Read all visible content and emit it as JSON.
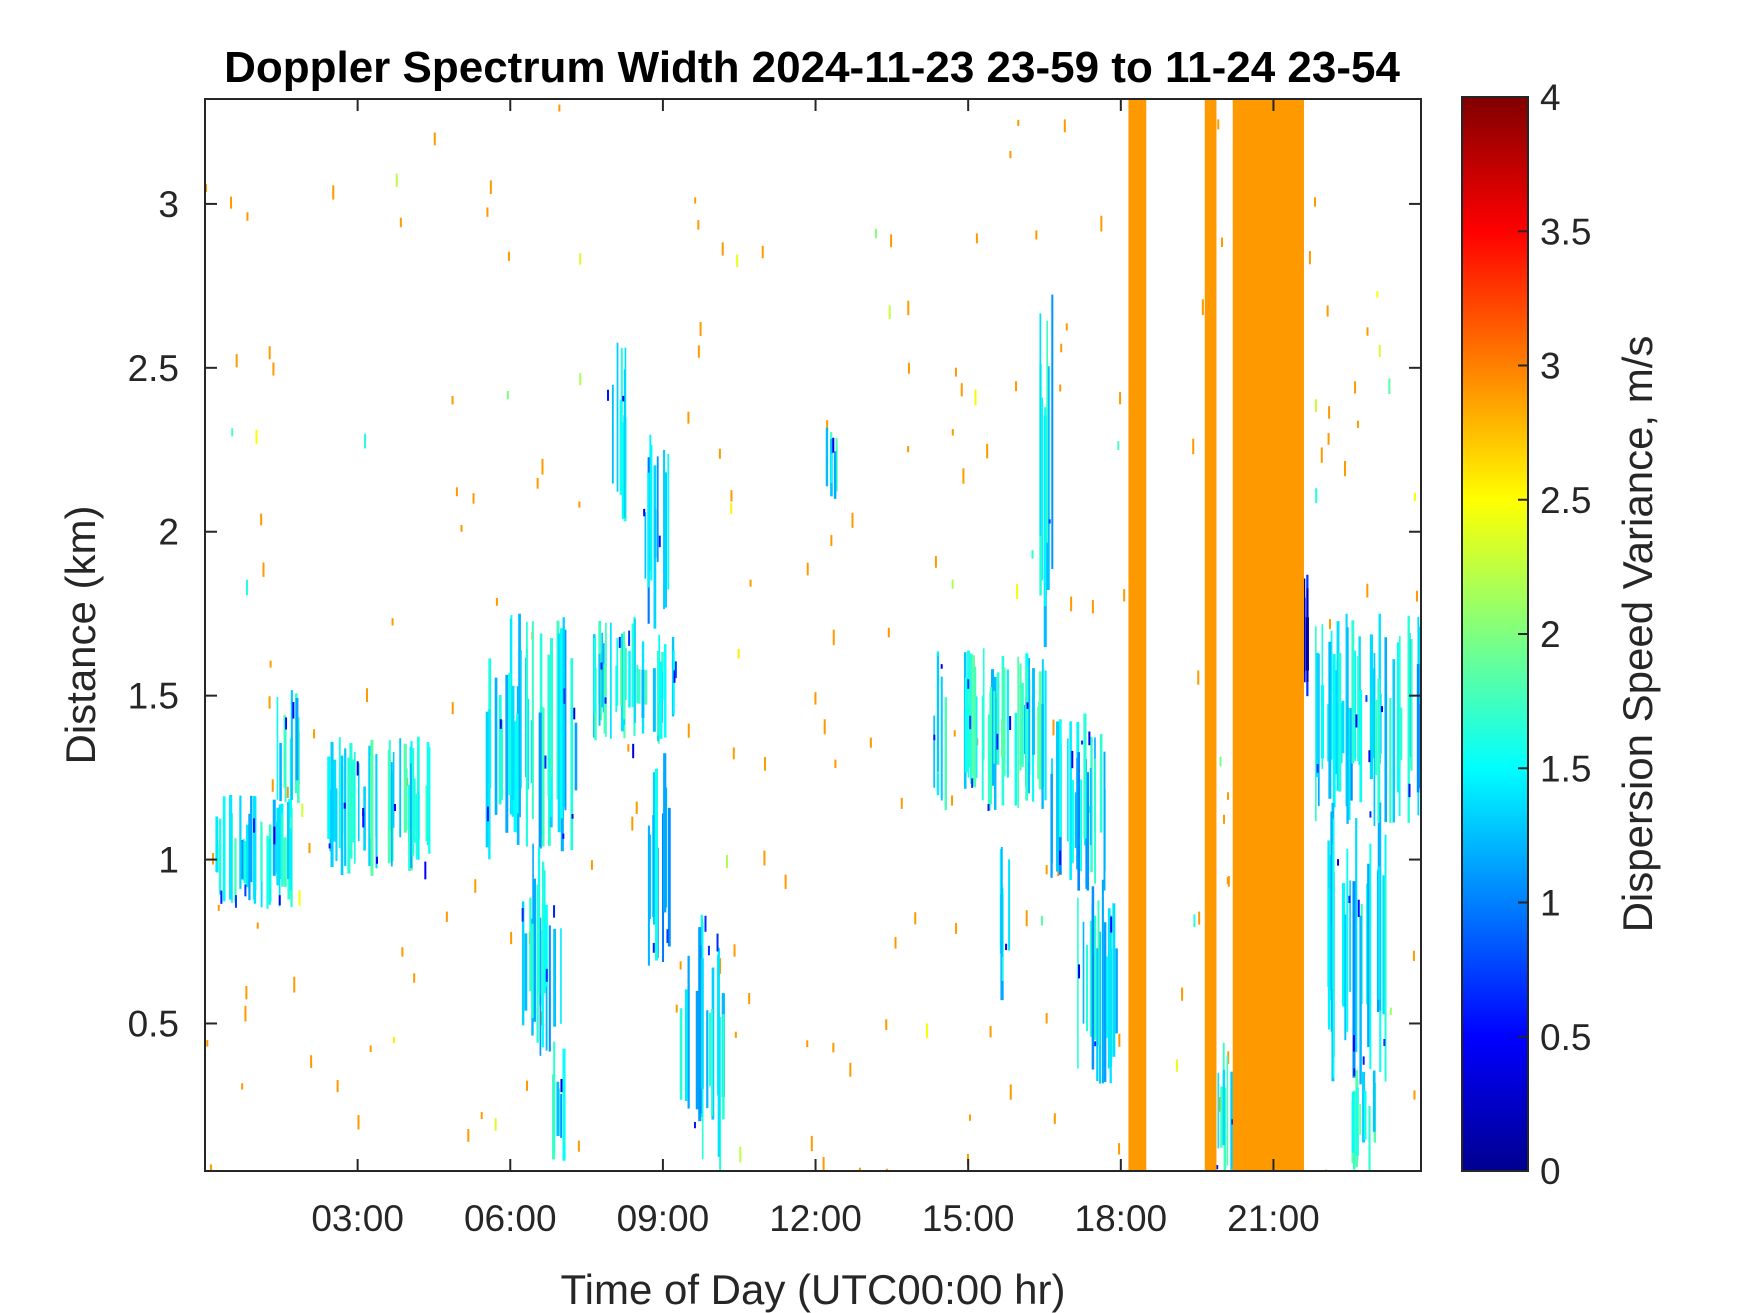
{
  "chart_data": {
    "type": "heatmap",
    "title": "Doppler Spectrum Width 2024-11-23 23-59 to 11-24 23-54",
    "xlabel": "Time of Day (UTC00:00 hr)",
    "ylabel": "Distance (km)",
    "colorbar_label": "Dispersion Speed Variance, m/s",
    "x_unit": "hours",
    "xlim": [
      0,
      23.9
    ],
    "ylim": [
      0.05,
      3.32
    ],
    "clim": [
      0,
      4
    ],
    "colormap": "jet",
    "x_ticks": [
      {
        "value": 3,
        "label": "03:00"
      },
      {
        "value": 6,
        "label": "06:00"
      },
      {
        "value": 9,
        "label": "09:00"
      },
      {
        "value": 12,
        "label": "12:00"
      },
      {
        "value": 15,
        "label": "15:00"
      },
      {
        "value": 18,
        "label": "18:00"
      },
      {
        "value": 21,
        "label": "21:00"
      }
    ],
    "y_ticks": [
      {
        "value": 0.5,
        "label": "0.5"
      },
      {
        "value": 1,
        "label": "1"
      },
      {
        "value": 1.5,
        "label": "1.5"
      },
      {
        "value": 2,
        "label": "2"
      },
      {
        "value": 2.5,
        "label": "2.5"
      },
      {
        "value": 3,
        "label": "3"
      }
    ],
    "colorbar_ticks": [
      {
        "value": 0,
        "label": "0"
      },
      {
        "value": 0.5,
        "label": "0.5"
      },
      {
        "value": 1,
        "label": "1"
      },
      {
        "value": 1.5,
        "label": "1.5"
      },
      {
        "value": 2,
        "label": "2"
      },
      {
        "value": 2.5,
        "label": "2.5"
      },
      {
        "value": 3,
        "label": "3"
      },
      {
        "value": 3.5,
        "label": "3.5"
      },
      {
        "value": 4,
        "label": "4"
      }
    ],
    "saturated_columns": [
      {
        "x0": 18.15,
        "x1": 18.5,
        "value": 2.9
      },
      {
        "x0": 19.65,
        "x1": 19.88,
        "value": 2.9
      },
      {
        "x0": 20.2,
        "x1": 21.6,
        "value": 2.9
      }
    ],
    "echo_regions": [
      {
        "x0": 0.2,
        "x1": 1.7,
        "y0": 0.85,
        "y1": 1.2,
        "value": 1.45
      },
      {
        "x0": 1.4,
        "x1": 1.85,
        "y0": 1.1,
        "y1": 1.52,
        "value": 1.45
      },
      {
        "x0": 2.4,
        "x1": 4.4,
        "y0": 0.95,
        "y1": 1.38,
        "value": 1.5
      },
      {
        "x0": 5.5,
        "x1": 7.3,
        "y0": 1.0,
        "y1": 1.75,
        "value": 1.4
      },
      {
        "x0": 6.2,
        "x1": 7.0,
        "y0": 0.4,
        "y1": 1.05,
        "value": 1.35
      },
      {
        "x0": 6.8,
        "x1": 7.05,
        "y0": 0.05,
        "y1": 0.45,
        "value": 1.4
      },
      {
        "x0": 7.6,
        "x1": 9.3,
        "y0": 1.35,
        "y1": 1.75,
        "value": 1.55
      },
      {
        "x0": 7.9,
        "x1": 8.3,
        "y0": 2.0,
        "y1": 2.6,
        "value": 1.5
      },
      {
        "x0": 8.6,
        "x1": 9.1,
        "y0": 1.7,
        "y1": 2.35,
        "value": 1.3
      },
      {
        "x0": 8.7,
        "x1": 9.2,
        "y0": 0.65,
        "y1": 1.35,
        "value": 1.3
      },
      {
        "x0": 9.3,
        "x1": 10.2,
        "y0": 0.05,
        "y1": 0.85,
        "value": 1.35
      },
      {
        "x0": 12.2,
        "x1": 12.45,
        "y0": 2.1,
        "y1": 2.35,
        "value": 1.5
      },
      {
        "x0": 14.3,
        "x1": 16.5,
        "y0": 1.15,
        "y1": 1.65,
        "value": 1.55
      },
      {
        "x0": 16.3,
        "x1": 16.65,
        "y0": 1.6,
        "y1": 2.75,
        "value": 1.4
      },
      {
        "x0": 15.6,
        "x1": 15.8,
        "y0": 0.55,
        "y1": 1.1,
        "value": 1.4
      },
      {
        "x0": 16.6,
        "x1": 17.7,
        "y0": 0.9,
        "y1": 1.45,
        "value": 1.35
      },
      {
        "x0": 17.1,
        "x1": 17.9,
        "y0": 0.3,
        "y1": 0.95,
        "value": 1.4
      },
      {
        "x0": 19.7,
        "x1": 20.35,
        "y0": 0.05,
        "y1": 0.45,
        "value": 1.45
      },
      {
        "x0": 21.5,
        "x1": 21.7,
        "y0": 1.45,
        "y1": 1.95,
        "value": 0.4
      },
      {
        "x0": 21.8,
        "x1": 23.9,
        "y0": 1.1,
        "y1": 1.75,
        "value": 1.4
      },
      {
        "x0": 22.0,
        "x1": 23.2,
        "y0": 0.3,
        "y1": 1.2,
        "value": 1.35
      },
      {
        "x0": 22.5,
        "x1": 23.0,
        "y0": 0.05,
        "y1": 0.4,
        "value": 1.6
      }
    ]
  }
}
